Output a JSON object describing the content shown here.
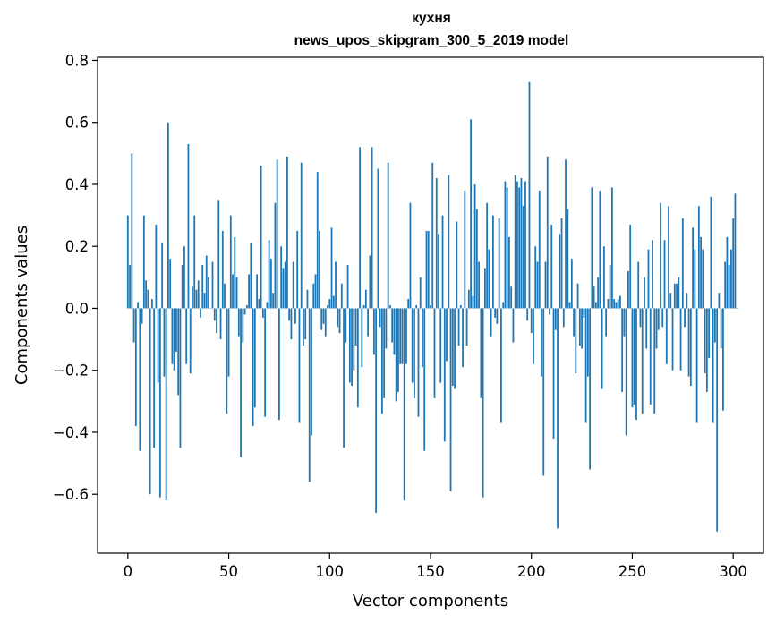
{
  "chart_data": {
    "type": "bar",
    "title": "кухня",
    "subtitle": "news_upos_skipgram_300_5_2019 model",
    "xlabel": "Vector components",
    "ylabel": "Components values",
    "xlim": [
      -15,
      315
    ],
    "ylim": [
      -0.79,
      0.81
    ],
    "xticks": [
      0,
      50,
      100,
      150,
      200,
      250,
      300
    ],
    "xtick_labels": [
      "0",
      "50",
      "100",
      "150",
      "200",
      "250",
      "300"
    ],
    "yticks": [
      0.8,
      0.6,
      0.4,
      0.2,
      0.0,
      -0.2,
      -0.4,
      -0.6
    ],
    "ytick_labels": [
      "0.8",
      "0.6",
      "0.4",
      "0.2",
      "0.0",
      "−0.2",
      "−0.4",
      "−0.6"
    ],
    "grid": false,
    "color": "#1f77b4",
    "values": [
      0.3,
      0.14,
      0.5,
      -0.11,
      -0.38,
      0.02,
      -0.46,
      -0.05,
      0.3,
      0.09,
      0.06,
      -0.6,
      0.03,
      -0.45,
      0.27,
      -0.24,
      -0.61,
      0.21,
      -0.22,
      -0.62,
      0.6,
      0.16,
      -0.18,
      -0.2,
      -0.14,
      -0.28,
      -0.45,
      0.14,
      0.2,
      -0.18,
      0.53,
      -0.21,
      0.07,
      0.3,
      0.06,
      0.09,
      -0.03,
      0.14,
      0.05,
      0.17,
      0.1,
      0.0,
      0.15,
      -0.04,
      -0.08,
      0.35,
      -0.1,
      0.25,
      0.08,
      -0.34,
      -0.22,
      0.3,
      0.11,
      0.23,
      0.1,
      -0.09,
      -0.48,
      -0.11,
      -0.02,
      0.01,
      0.11,
      0.21,
      -0.38,
      -0.32,
      0.11,
      0.03,
      0.46,
      -0.03,
      -0.35,
      0.02,
      0.22,
      0.16,
      0.05,
      0.34,
      0.48,
      -0.36,
      0.2,
      0.13,
      0.15,
      0.49,
      -0.04,
      -0.1,
      0.15,
      -0.05,
      0.25,
      -0.37,
      0.47,
      -0.12,
      -0.1,
      0.06,
      -0.56,
      -0.41,
      0.08,
      0.11,
      0.44,
      0.25,
      -0.07,
      -0.05,
      -0.09,
      0.01,
      0.03,
      0.26,
      0.04,
      0.15,
      -0.06,
      -0.08,
      0.08,
      -0.45,
      -0.11,
      0.14,
      -0.24,
      -0.25,
      -0.2,
      -0.12,
      -0.32,
      0.52,
      -0.19,
      0.01,
      0.06,
      -0.09,
      0.17,
      0.52,
      -0.15,
      -0.66,
      0.45,
      -0.06,
      -0.34,
      -0.29,
      -0.13,
      0.47,
      0.01,
      -0.11,
      -0.15,
      -0.3,
      -0.27,
      -0.18,
      -0.18,
      -0.62,
      -0.18,
      0.03,
      0.34,
      -0.24,
      -0.29,
      0.01,
      -0.35,
      0.1,
      -0.19,
      -0.46,
      0.25,
      0.25,
      0.01,
      0.47,
      -0.29,
      0.42,
      0.24,
      -0.24,
      0.3,
      -0.43,
      -0.17,
      0.43,
      -0.59,
      -0.25,
      -0.26,
      0.28,
      -0.12,
      0.01,
      -0.19,
      0.38,
      -0.12,
      0.06,
      0.61,
      0.04,
      0.4,
      0.32,
      0.15,
      -0.29,
      -0.61,
      0.13,
      0.34,
      0.19,
      -0.09,
      0.3,
      -0.03,
      -0.05,
      0.29,
      -0.37,
      0.02,
      0.41,
      0.39,
      0.23,
      0.07,
      -0.11,
      0.43,
      0.41,
      0.39,
      0.42,
      0.33,
      0.41,
      -0.04,
      0.73,
      -0.08,
      -0.18,
      0.2,
      0.15,
      0.38,
      -0.22,
      -0.54,
      0.15,
      0.49,
      -0.02,
      0.27,
      -0.42,
      -0.07,
      -0.71,
      0.24,
      0.29,
      -0.06,
      0.48,
      0.32,
      0.02,
      0.16,
      -0.09,
      -0.21,
      0.08,
      -0.12,
      -0.13,
      -0.03,
      -0.37,
      -0.22,
      -0.52,
      0.39,
      0.07,
      0.02,
      0.1,
      0.38,
      -0.26,
      0.2,
      -0.09,
      0.03,
      0.14,
      0.39,
      0.03,
      0.02,
      0.03,
      0.04,
      -0.27,
      -0.09,
      -0.41,
      0.12,
      0.27,
      -0.32,
      -0.31,
      -0.36,
      0.15,
      -0.06,
      -0.34,
      0.1,
      -0.13,
      0.19,
      -0.31,
      0.22,
      -0.34,
      -0.13,
      -0.07,
      0.34,
      -0.06,
      0.22,
      -0.18,
      0.33,
      0.05,
      -0.2,
      0.08,
      0.08,
      0.1,
      -0.2,
      0.29,
      -0.06,
      0.05,
      -0.22,
      -0.25,
      0.26,
      0.19,
      -0.37,
      0.33,
      0.23,
      0.19,
      -0.21,
      -0.27,
      -0.16,
      0.36,
      -0.37,
      -0.11,
      -0.72,
      0.05,
      -0.13,
      -0.33,
      0.15,
      0.23,
      0.14,
      0.19,
      0.29,
      0.37,
      0.0
    ]
  }
}
